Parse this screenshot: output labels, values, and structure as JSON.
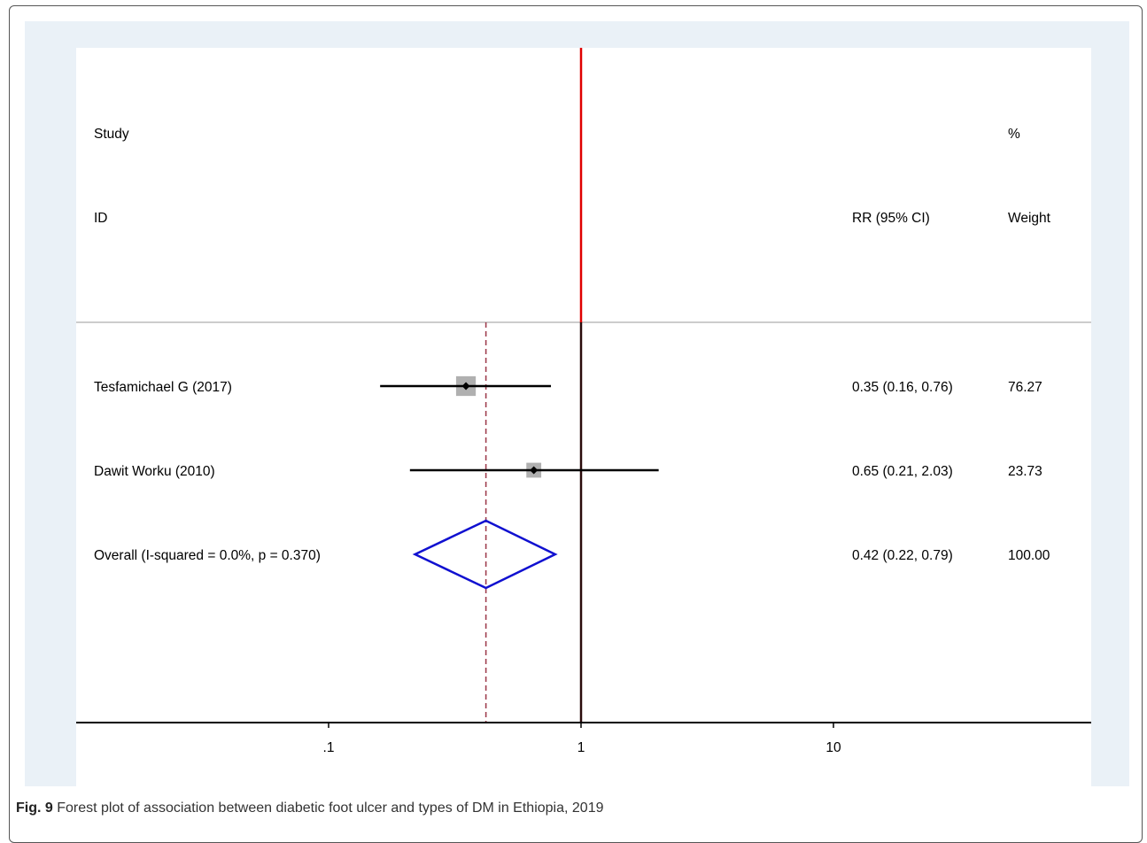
{
  "chart_data": {
    "type": "forest",
    "header": {
      "study_line1": "Study",
      "study_line2": "ID",
      "effect_label": "RR (95% CI)",
      "weight_line1": "%",
      "weight_line2": "Weight"
    },
    "studies": [
      {
        "label": "Tesfamichael G (2017)",
        "rr": 0.35,
        "ci": [
          0.16,
          0.76
        ],
        "weight": 76.27,
        "ci_text": "0.35 (0.16, 0.76)",
        "weight_text": "76.27"
      },
      {
        "label": "Dawit Worku (2010)",
        "rr": 0.65,
        "ci": [
          0.21,
          2.03
        ],
        "weight": 23.73,
        "ci_text": "0.65 (0.21, 2.03)",
        "weight_text": "23.73"
      }
    ],
    "overall": {
      "label": "Overall  (I-squared = 0.0%, p = 0.370)",
      "rr": 0.42,
      "ci": [
        0.22,
        0.79
      ],
      "ci_text": "0.42 (0.22, 0.79)",
      "weight_text": "100.00"
    },
    "x_scale": "log",
    "x_ticks": [
      0.1,
      1,
      10
    ],
    "x_tick_labels": [
      ".1",
      "1",
      "10"
    ],
    "null_line": 1,
    "colors": {
      "null_line": "#e00000",
      "overall_diamond": "#1010d0",
      "pooled_dashed_line": "#a04050",
      "weight_box": "#b0b0b0",
      "background": "#eaf1f7"
    }
  },
  "caption": {
    "label": "Fig. 9",
    "text": "Forest plot of association between diabetic foot ulcer and types of DM in Ethiopia, 2019"
  }
}
